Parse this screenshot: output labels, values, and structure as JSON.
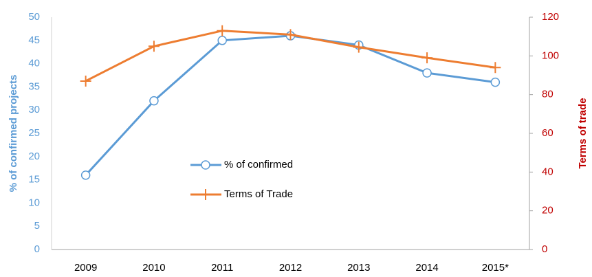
{
  "chart_data": {
    "type": "line",
    "categories": [
      "2009",
      "2010",
      "2011",
      "2012",
      "2013",
      "2014",
      "2015*"
    ],
    "y_label": "% of confirmed projects",
    "y2_label": "Terms of trade",
    "ylim": [
      0,
      50
    ],
    "yticks": [
      0,
      5,
      10,
      15,
      20,
      25,
      30,
      35,
      40,
      45,
      50
    ],
    "y2lim": [
      0,
      120
    ],
    "y2ticks": [
      0,
      20,
      40,
      60,
      80,
      100,
      120
    ],
    "series": [
      {
        "name": "% of confirmed",
        "color": "#5b9bd5",
        "values": [
          16,
          32,
          45,
          46,
          44,
          38,
          36
        ]
      },
      {
        "name": "Terms of Trade",
        "color": "#ed7d31",
        "axis": "y2",
        "values": [
          87,
          105,
          113,
          111,
          104.5,
          99,
          94
        ]
      }
    ]
  }
}
